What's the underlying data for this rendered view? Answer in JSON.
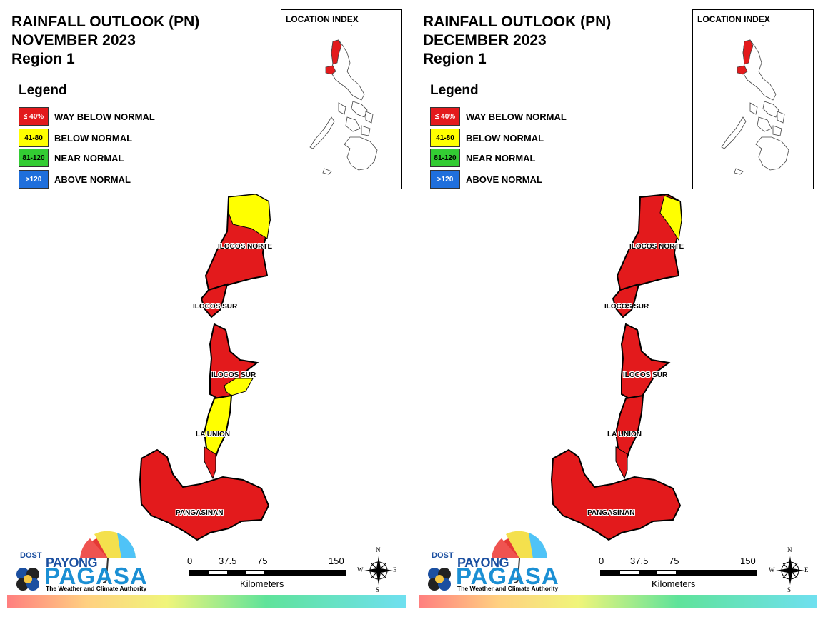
{
  "panels": [
    {
      "title_line1": "RAINFALL OUTLOOK (PN)",
      "title_line2": "NOVEMBER 2023",
      "title_line3": "Region 1",
      "location_index_title": "LOCATION INDEX",
      "legend_title": "Legend",
      "legend": [
        {
          "range": "≤ 40%",
          "label": "WAY BELOW NORMAL",
          "color": "#e31a1c"
        },
        {
          "range": "41-80",
          "label": "BELOW NORMAL",
          "color": "#ffff00"
        },
        {
          "range": "81-120",
          "label": "NEAR NORMAL",
          "color": "#33cc33"
        },
        {
          "range": ">120",
          "label": "ABOVE NORMAL",
          "color": "#1f6fdc"
        }
      ],
      "provinces": [
        "ILOCOS NORTE",
        "ILOCOS SUR",
        "ILOCOS SUR",
        "LA UNION",
        "PANGASINAN"
      ],
      "scale": {
        "ticks": [
          "0",
          "37.5",
          "75",
          "150"
        ],
        "unit": "Kilometers"
      },
      "compass": {
        "n": "N",
        "e": "E",
        "s": "S",
        "w": "W"
      },
      "logo": {
        "dost": "DOST",
        "payong": "PAYONG",
        "pagasa": "PAGASA",
        "tagline": "The Weather and Climate Authority"
      }
    },
    {
      "title_line1": "RAINFALL OUTLOOK (PN)",
      "title_line2": "DECEMBER 2023",
      "title_line3": "Region 1",
      "location_index_title": "LOCATION INDEX",
      "legend_title": "Legend",
      "legend": [
        {
          "range": "≤ 40%",
          "label": "WAY BELOW NORMAL",
          "color": "#e31a1c"
        },
        {
          "range": "41-80",
          "label": "BELOW NORMAL",
          "color": "#ffff00"
        },
        {
          "range": "81-120",
          "label": "NEAR NORMAL",
          "color": "#33cc33"
        },
        {
          "range": ">120",
          "label": "ABOVE NORMAL",
          "color": "#1f6fdc"
        }
      ],
      "provinces": [
        "ILOCOS NORTE",
        "ILOCOS SUR",
        "ILOCOS SUR",
        "LA UNION",
        "PANGASINAN"
      ],
      "scale": {
        "ticks": [
          "0",
          "37.5",
          "75",
          "150"
        ],
        "unit": "Kilometers"
      },
      "compass": {
        "n": "N",
        "e": "E",
        "s": "S",
        "w": "W"
      },
      "logo": {
        "dost": "DOST",
        "payong": "PAYONG",
        "pagasa": "PAGASA",
        "tagline": "The Weather and Climate Authority"
      }
    }
  ],
  "map_classes": {
    "november": {
      "ilocos_norte_north": "BELOW NORMAL",
      "ilocos_norte_rest": "WAY BELOW NORMAL",
      "ilocos_sur": "WAY BELOW NORMAL",
      "ilocos_sur_south": "BELOW NORMAL",
      "la_union": "BELOW NORMAL",
      "pangasinan": "WAY BELOW NORMAL"
    },
    "december": {
      "ilocos_norte_north": "BELOW NORMAL",
      "ilocos_norte_rest": "WAY BELOW NORMAL",
      "ilocos_sur": "WAY BELOW NORMAL",
      "ilocos_sur_south": "WAY BELOW NORMAL",
      "la_union": "WAY BELOW NORMAL",
      "pangasinan": "WAY BELOW NORMAL"
    }
  }
}
